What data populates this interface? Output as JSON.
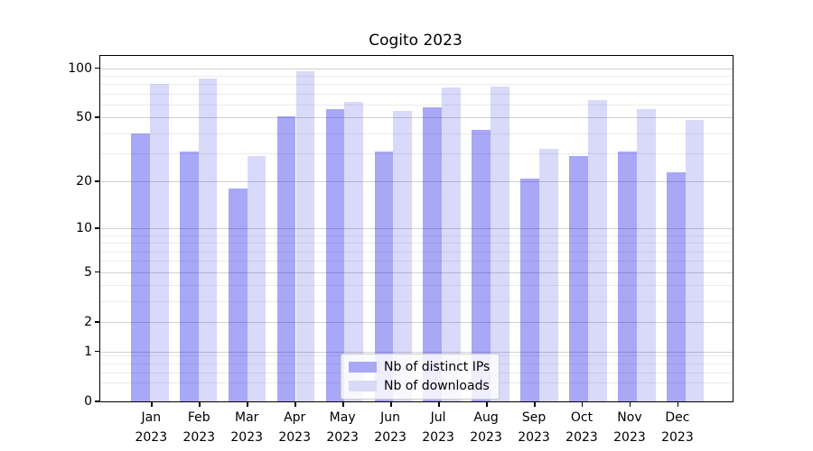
{
  "title": "Cogito 2023",
  "legend": {
    "position": "lower center",
    "items": [
      {
        "label": "Nb of distinct IPs",
        "swatch_color": "#a8a8f6"
      },
      {
        "label": "Nb of downloads",
        "swatch_color": "#d9d9f8"
      }
    ]
  },
  "colors": {
    "bar_distinct_ips": "rgba(0,0,230,0.34)",
    "bar_downloads": "rgba(0,0,220,0.15)",
    "grid_major": "#d2d2d2",
    "grid_minor": "#ebebeb",
    "spine": "#000000"
  },
  "chart_data": {
    "type": "bar",
    "title": "Cogito 2023",
    "categories": [
      "Jan 2023",
      "Feb 2023",
      "Mar 2023",
      "Apr 2023",
      "May 2023",
      "Jun 2023",
      "Jul 2023",
      "Aug 2023",
      "Sep 2023",
      "Oct 2023",
      "Nov 2023",
      "Dec 2023"
    ],
    "series": [
      {
        "name": "Nb of distinct IPs",
        "color": "rgba(0,0,230,0.34)",
        "values": [
          40,
          31,
          18,
          51,
          56,
          31,
          58,
          42,
          21,
          29,
          31,
          23
        ]
      },
      {
        "name": "Nb of downloads",
        "color": "rgba(0,0,220,0.15)",
        "values": [
          80,
          86,
          29,
          96,
          62,
          55,
          76,
          77,
          32,
          64,
          56,
          48
        ]
      }
    ],
    "xlabel": "",
    "ylabel": "",
    "yscale": "log1p",
    "ylim": [
      0,
      118
    ],
    "y_major_ticks": [
      0,
      1,
      2,
      5,
      10,
      20,
      50,
      100
    ],
    "y_minor_ticks": [
      0.3,
      0.5,
      0.7,
      0.9,
      3,
      4,
      6,
      7,
      8,
      9,
      30,
      40,
      60,
      70,
      80,
      90
    ],
    "grid": true,
    "legend_position": "lower center"
  }
}
